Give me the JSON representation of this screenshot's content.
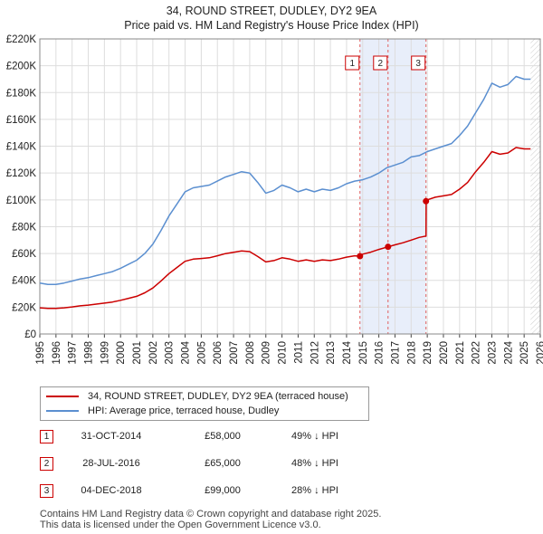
{
  "header": {
    "title": "34, ROUND STREET, DUDLEY, DY2 9EA",
    "subtitle": "Price paid vs. HM Land Registry's House Price Index (HPI)"
  },
  "chart_data": {
    "type": "line",
    "title": "34, ROUND STREET, DUDLEY, DY2 9EA",
    "subtitle": "Price paid vs. HM Land Registry's House Price Index (HPI)",
    "xlabel": "",
    "ylabel": "",
    "xlim": [
      1995,
      2026
    ],
    "ylim": [
      0,
      220000
    ],
    "x_ticks": [
      1995,
      1996,
      1997,
      1998,
      1999,
      2000,
      2001,
      2002,
      2003,
      2004,
      2005,
      2006,
      2007,
      2008,
      2009,
      2010,
      2011,
      2012,
      2013,
      2014,
      2015,
      2016,
      2017,
      2018,
      2019,
      2020,
      2021,
      2022,
      2023,
      2024,
      2025,
      2026
    ],
    "y_ticks": [
      {
        "value": 0,
        "label": "£0"
      },
      {
        "value": 20000,
        "label": "£20K"
      },
      {
        "value": 40000,
        "label": "£40K"
      },
      {
        "value": 60000,
        "label": "£60K"
      },
      {
        "value": 80000,
        "label": "£80K"
      },
      {
        "value": 100000,
        "label": "£100K"
      },
      {
        "value": 120000,
        "label": "£120K"
      },
      {
        "value": 140000,
        "label": "£140K"
      },
      {
        "value": 160000,
        "label": "£160K"
      },
      {
        "value": 180000,
        "label": "£180K"
      },
      {
        "value": 200000,
        "label": "£200K"
      },
      {
        "value": 220000,
        "label": "£220K"
      }
    ],
    "grid": true,
    "colors": {
      "hpi": "#5b8fd0",
      "property": "#cc0000",
      "shade": "#e8eefa",
      "grid": "#dddddd"
    },
    "series": [
      {
        "name": "HPI: Average price, terraced house, Dudley",
        "color": "#5b8fd0",
        "x": [
          1995,
          1995.5,
          1996,
          1996.5,
          1997,
          1997.5,
          1998,
          1998.5,
          1999,
          1999.5,
          2000,
          2000.5,
          2001,
          2001.5,
          2002,
          2002.5,
          2003,
          2003.5,
          2004,
          2004.5,
          2005,
          2005.5,
          2006,
          2006.5,
          2007,
          2007.5,
          2008,
          2008.5,
          2009,
          2009.5,
          2010,
          2010.5,
          2011,
          2011.5,
          2012,
          2012.5,
          2013,
          2013.5,
          2014,
          2014.5,
          2015,
          2015.5,
          2016,
          2016.5,
          2017,
          2017.5,
          2018,
          2018.5,
          2019,
          2019.5,
          2020,
          2020.5,
          2021,
          2021.5,
          2022,
          2022.5,
          2023,
          2023.5,
          2024,
          2024.5,
          2025,
          2025.4
        ],
        "values": [
          38000,
          37000,
          37000,
          38000,
          39500,
          41000,
          42000,
          43500,
          45000,
          46500,
          49000,
          52000,
          55000,
          60000,
          67000,
          77000,
          88000,
          97000,
          106000,
          109000,
          110000,
          111000,
          114000,
          117000,
          119000,
          121000,
          120000,
          113000,
          105000,
          107000,
          111000,
          109000,
          106000,
          108000,
          106000,
          108000,
          107000,
          109000,
          112000,
          114000,
          115000,
          117000,
          120000,
          124000,
          126000,
          128000,
          132000,
          133000,
          136000,
          138000,
          140000,
          142000,
          148000,
          155000,
          165000,
          175000,
          187000,
          184000,
          186000,
          192000,
          190000,
          190000
        ]
      },
      {
        "name": "34, ROUND STREET, DUDLEY, DY2 9EA (terraced house)",
        "color": "#cc0000",
        "x": [
          1995,
          1995.5,
          1996,
          1996.5,
          1997,
          1997.5,
          1998,
          1998.5,
          1999,
          1999.5,
          2000,
          2000.5,
          2001,
          2001.5,
          2002,
          2002.5,
          2003,
          2003.5,
          2004,
          2004.5,
          2005,
          2005.5,
          2006,
          2006.5,
          2007,
          2007.5,
          2008,
          2008.5,
          2009,
          2009.5,
          2010,
          2010.5,
          2011,
          2011.5,
          2012,
          2012.5,
          2013,
          2013.5,
          2014,
          2014.5,
          2014.83,
          2015,
          2015.5,
          2016,
          2016.57,
          2017,
          2017.5,
          2018,
          2018.5,
          2018.92,
          2018.93,
          2019,
          2019.5,
          2020,
          2020.5,
          2021,
          2021.5,
          2022,
          2022.5,
          2023,
          2023.5,
          2024,
          2024.5,
          2025,
          2025.4
        ],
        "values": [
          19500,
          19000,
          19000,
          19500,
          20200,
          21000,
          21500,
          22300,
          23000,
          23800,
          25100,
          26600,
          28100,
          30700,
          34300,
          39400,
          45000,
          49600,
          54200,
          55800,
          56300,
          56800,
          58300,
          59900,
          60900,
          61900,
          61400,
          57800,
          53700,
          54700,
          56800,
          55800,
          54200,
          55300,
          54200,
          55300,
          54700,
          55800,
          57300,
          58300,
          58000,
          59500,
          61000,
          63000,
          65000,
          66500,
          68000,
          70000,
          72000,
          73000,
          99000,
          100000,
          102000,
          103000,
          104000,
          108000,
          113000,
          121000,
          128000,
          136000,
          134000,
          135000,
          139000,
          138000,
          138000
        ]
      }
    ],
    "sales": [
      {
        "label": "1",
        "date": "31-OCT-2014",
        "x": 2014.83,
        "price": 58000,
        "price_text": "£58,000",
        "delta": "49% ↓ HPI"
      },
      {
        "label": "2",
        "date": "28-JUL-2016",
        "x": 2016.57,
        "price": 65000,
        "price_text": "£65,000",
        "delta": "48% ↓ HPI"
      },
      {
        "label": "3",
        "date": "04-DEC-2018",
        "x": 2018.92,
        "price": 99000,
        "price_text": "£99,000",
        "delta": "28% ↓ HPI"
      }
    ],
    "shaded_range": [
      2014.83,
      2018.92
    ],
    "projection_x": 2025.4
  },
  "legend": {
    "property": "34, ROUND STREET, DUDLEY, DY2 9EA (terraced house)",
    "hpi": "HPI: Average price, terraced house, Dudley"
  },
  "footer": {
    "line1": "Contains HM Land Registry data © Crown copyright and database right 2025.",
    "line2": "This data is licensed under the Open Government Licence v3.0."
  }
}
